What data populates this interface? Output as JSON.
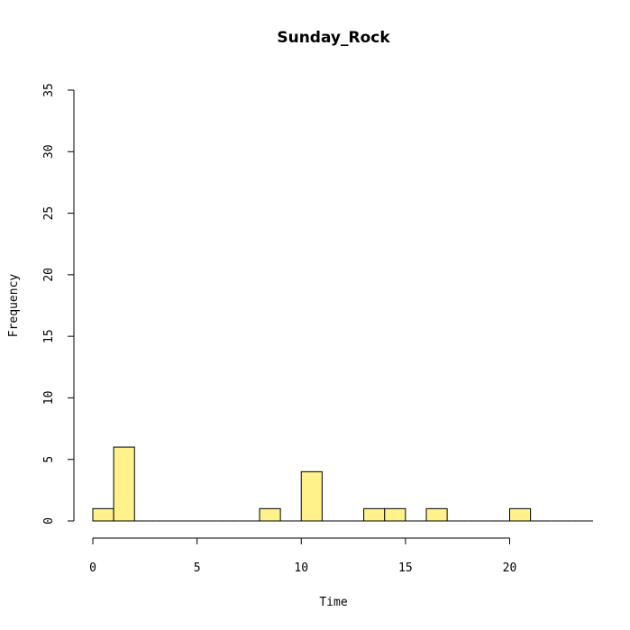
{
  "chart_data": {
    "type": "bar",
    "title": "Sunday_Rock",
    "xlabel": "Time",
    "ylabel": "Frequency",
    "xlim": [
      0,
      24
    ],
    "ylim": [
      0,
      35
    ],
    "bin_width": 1,
    "bins": [
      {
        "x0": 0,
        "x1": 1,
        "count": 1
      },
      {
        "x0": 1,
        "x1": 2,
        "count": 6
      },
      {
        "x0": 2,
        "x1": 3,
        "count": 0
      },
      {
        "x0": 3,
        "x1": 4,
        "count": 0
      },
      {
        "x0": 4,
        "x1": 5,
        "count": 0
      },
      {
        "x0": 5,
        "x1": 6,
        "count": 0
      },
      {
        "x0": 6,
        "x1": 7,
        "count": 0
      },
      {
        "x0": 7,
        "x1": 8,
        "count": 0
      },
      {
        "x0": 8,
        "x1": 9,
        "count": 1
      },
      {
        "x0": 9,
        "x1": 10,
        "count": 0
      },
      {
        "x0": 10,
        "x1": 11,
        "count": 4
      },
      {
        "x0": 11,
        "x1": 12,
        "count": 0
      },
      {
        "x0": 12,
        "x1": 13,
        "count": 0
      },
      {
        "x0": 13,
        "x1": 14,
        "count": 1
      },
      {
        "x0": 14,
        "x1": 15,
        "count": 1
      },
      {
        "x0": 15,
        "x1": 16,
        "count": 0
      },
      {
        "x0": 16,
        "x1": 17,
        "count": 1
      },
      {
        "x0": 17,
        "x1": 18,
        "count": 0
      },
      {
        "x0": 18,
        "x1": 19,
        "count": 0
      },
      {
        "x0": 19,
        "x1": 20,
        "count": 0
      },
      {
        "x0": 20,
        "x1": 21,
        "count": 1
      },
      {
        "x0": 21,
        "x1": 22,
        "count": 0
      },
      {
        "x0": 22,
        "x1": 23,
        "count": 0
      },
      {
        "x0": 23,
        "x1": 24,
        "count": 0
      }
    ],
    "xticks": [
      0,
      5,
      10,
      15,
      20
    ],
    "yticks": [
      0,
      5,
      10,
      15,
      20,
      25,
      30,
      35
    ],
    "bar_color": "#fff28a",
    "grid": false,
    "legend": "none"
  }
}
